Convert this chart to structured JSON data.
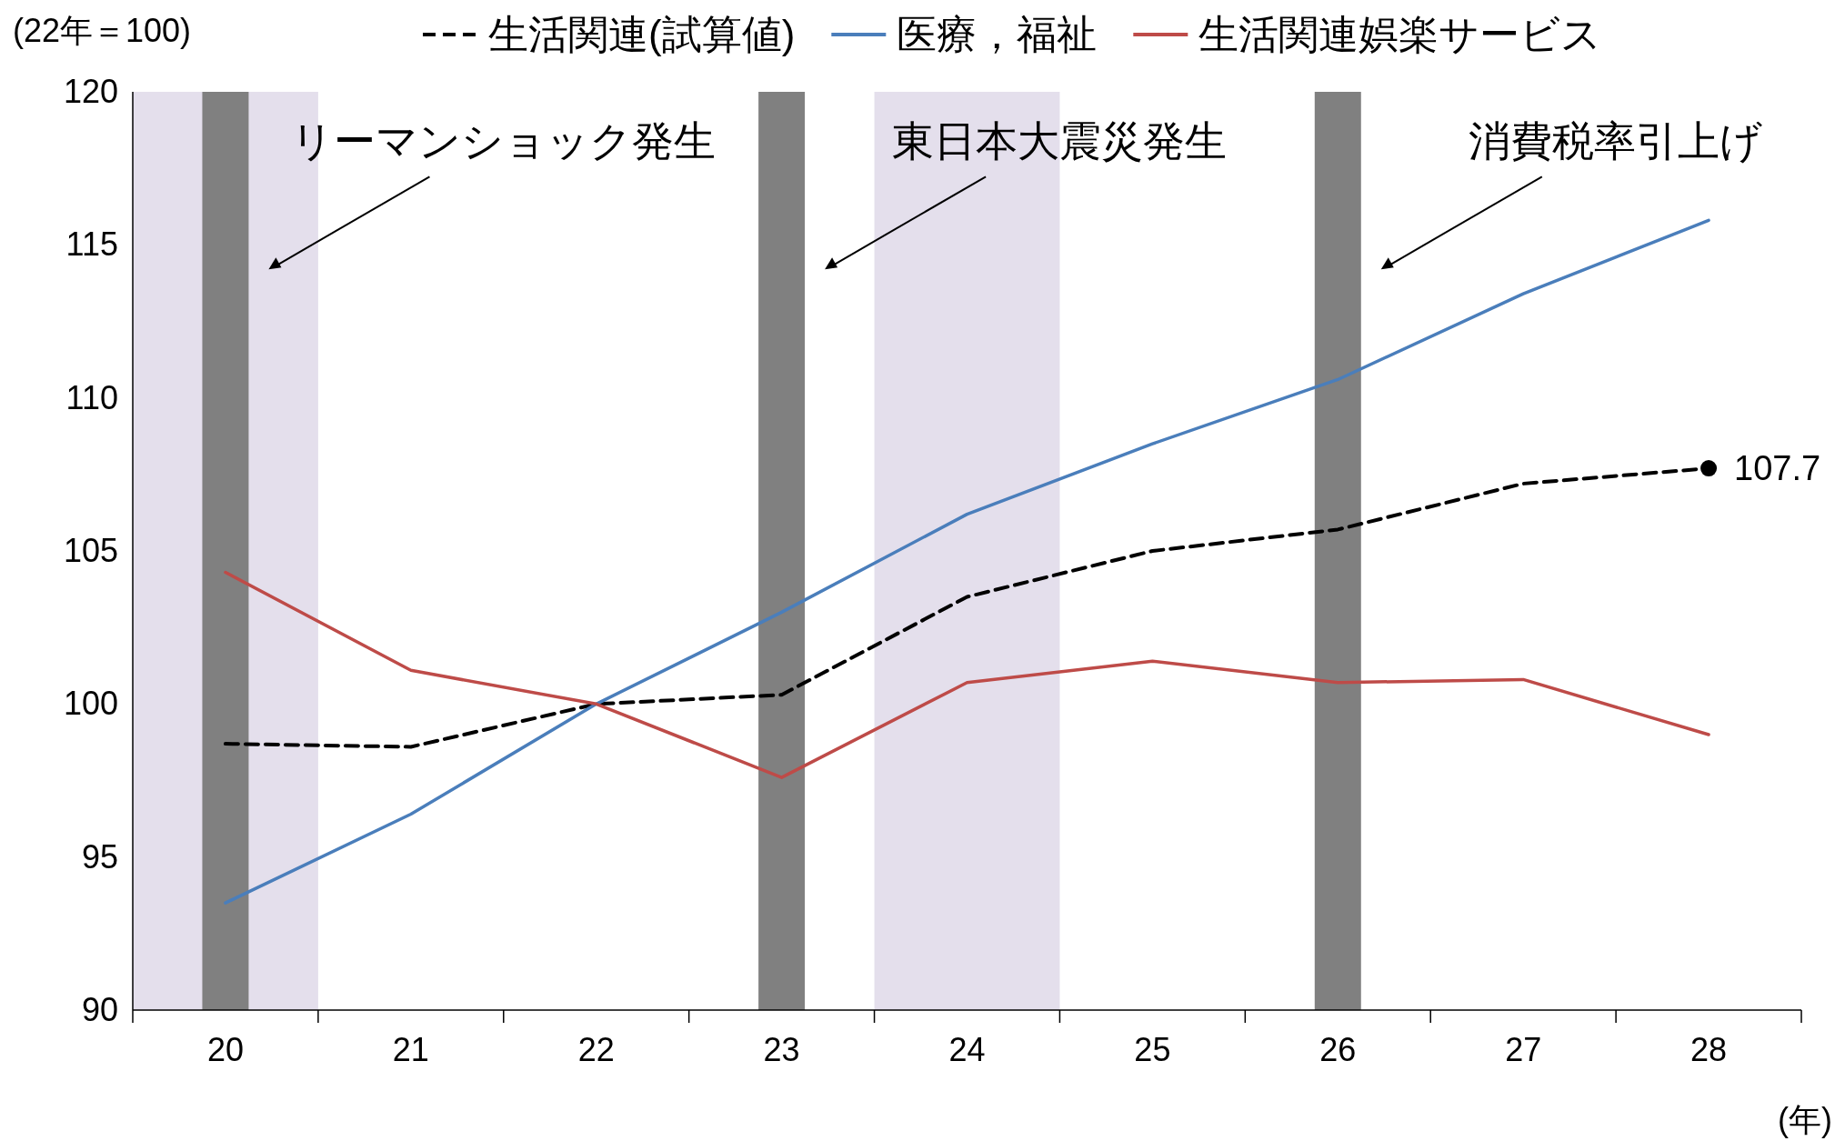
{
  "chart_data": {
    "type": "line",
    "ylabel": "(22年＝100)",
    "xlabel": "(年)",
    "x": [
      20,
      21,
      22,
      23,
      24,
      25,
      26,
      27,
      28
    ],
    "xlim": [
      19.5,
      28.5
    ],
    "xticks": [
      20,
      21,
      22,
      23,
      24,
      25,
      26,
      27,
      28,
      {
        "value": 20.5,
        "label": null
      },
      {
        "value": 21.5,
        "label": null
      },
      {
        "value": 22.5,
        "label": null
      },
      {
        "value": 23.5,
        "label": null
      },
      {
        "value": 24.5,
        "label": null
      },
      {
        "value": 25.5,
        "label": null
      },
      {
        "value": 26.5,
        "label": null
      },
      {
        "value": 27.5,
        "label": null
      }
    ],
    "ylim": [
      90,
      120
    ],
    "yticks": [
      90,
      95,
      100,
      105,
      110,
      115,
      120
    ],
    "legend": "top",
    "series": [
      {
        "name": "生活関連(試算値)",
        "color": "#000000",
        "line_style": "dashed",
        "values": [
          98.7,
          98.6,
          100.0,
          100.3,
          103.5,
          105.0,
          105.7,
          107.2,
          107.7
        ],
        "value_labels": [
          null,
          null,
          null,
          null,
          null,
          null,
          null,
          null,
          "107.7"
        ]
      },
      {
        "name": "医療，福祉",
        "color": "#4a7ebb",
        "line_style": "solid",
        "values": [
          93.5,
          96.4,
          100.0,
          103.0,
          106.2,
          108.5,
          110.6,
          113.4,
          115.8
        ]
      },
      {
        "name": "生活関連娯楽サービス",
        "color": "#be4b48",
        "line_style": "solid",
        "values": [
          104.3,
          101.1,
          100.0,
          97.6,
          100.7,
          101.4,
          100.7,
          100.8,
          99.0
        ]
      }
    ],
    "bands": [
      {
        "axis": "x",
        "from": 19.5,
        "to": 20.5,
        "color": "#e4dfec"
      },
      {
        "axis": "x",
        "from": 23.5,
        "to": 24.5,
        "color": "#e4dfec"
      },
      {
        "axis": "x",
        "from": 19.875,
        "to": 20.125,
        "color": "#808080",
        "label": "リーマンショック発生"
      },
      {
        "axis": "x",
        "from": 22.875,
        "to": 23.125,
        "color": "#808080",
        "label": "東日本大震災発生"
      },
      {
        "axis": "x",
        "from": 25.875,
        "to": 26.125,
        "color": "#808080",
        "label": "消費税率引上げ"
      }
    ]
  }
}
